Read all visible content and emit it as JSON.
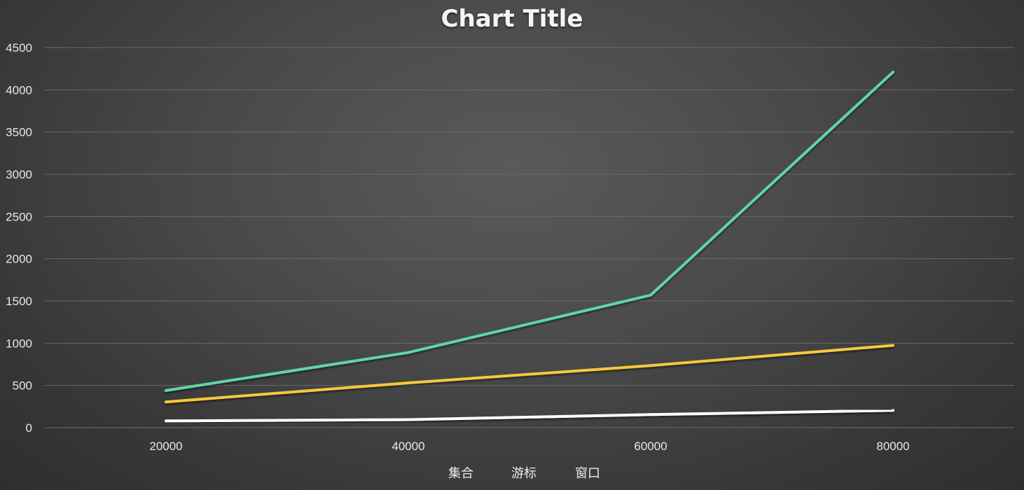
{
  "chart_data": {
    "type": "line",
    "title": "Chart Title",
    "x": [
      20000,
      40000,
      60000,
      80000
    ],
    "x_tick_labels": [
      "20000",
      "40000",
      "60000",
      "80000"
    ],
    "y_tick_labels": [
      "0",
      "500",
      "1000",
      "1500",
      "2000",
      "2500",
      "3000",
      "3500",
      "4000",
      "4500"
    ],
    "ylim": [
      0,
      4500
    ],
    "y_ticks": [
      0,
      500,
      1000,
      1500,
      2000,
      2500,
      3000,
      3500,
      4000,
      4500
    ],
    "grid": true,
    "legend_position": "bottom",
    "series": [
      {
        "name": "集合",
        "color": "#5fd6a3",
        "values": [
          440,
          890,
          1570,
          4210
        ]
      },
      {
        "name": "游标",
        "color": "#f5c83c",
        "values": [
          305,
          530,
          735,
          975
        ]
      },
      {
        "name": "窗口",
        "color": "#ffffff",
        "values": [
          80,
          95,
          155,
          205
        ]
      }
    ]
  }
}
